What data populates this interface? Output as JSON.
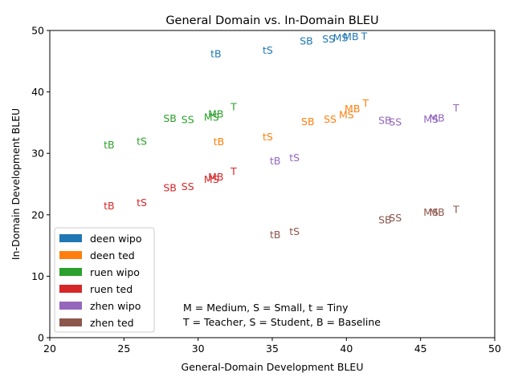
{
  "chart_data": {
    "type": "scatter",
    "title": "General Domain vs. In-Domain BLEU",
    "xlabel": "General-Domain Development BLEU",
    "ylabel": "In-Domain Development BLEU",
    "xlim": [
      20,
      50
    ],
    "ylim": [
      0,
      50
    ],
    "xticks": [
      20,
      25,
      30,
      35,
      40,
      45,
      50
    ],
    "yticks": [
      0,
      10,
      20,
      30,
      40,
      50
    ],
    "grid": false,
    "legend_position": "lower-left",
    "annotation_lines": [
      "M = Medium, S = Small, t = Tiny",
      "T = Teacher, S = Student, B = Baseline"
    ],
    "series": [
      {
        "name": "deen wipo",
        "color": "#1f77b4",
        "points": [
          {
            "label": "tB",
            "x": 31.2,
            "y": 46.2
          },
          {
            "label": "tS",
            "x": 34.7,
            "y": 46.8
          },
          {
            "label": "SB",
            "x": 37.3,
            "y": 48.3
          },
          {
            "label": "SS",
            "x": 38.8,
            "y": 48.6
          },
          {
            "label": "MS",
            "x": 39.6,
            "y": 48.8
          },
          {
            "label": "MB",
            "x": 40.3,
            "y": 49.0
          },
          {
            "label": "T",
            "x": 41.2,
            "y": 49.1
          }
        ]
      },
      {
        "name": "deen ted",
        "color": "#ff7f0e",
        "points": [
          {
            "label": "tB",
            "x": 31.4,
            "y": 31.9
          },
          {
            "label": "tS",
            "x": 34.7,
            "y": 32.7
          },
          {
            "label": "SB",
            "x": 37.4,
            "y": 35.2
          },
          {
            "label": "SS",
            "x": 38.9,
            "y": 35.6
          },
          {
            "label": "MS",
            "x": 40.0,
            "y": 36.3
          },
          {
            "label": "MB",
            "x": 40.4,
            "y": 37.3
          },
          {
            "label": "T",
            "x": 41.3,
            "y": 38.2
          }
        ]
      },
      {
        "name": "ruen wipo",
        "color": "#2ca02c",
        "points": [
          {
            "label": "tB",
            "x": 24.0,
            "y": 31.4
          },
          {
            "label": "tS",
            "x": 26.2,
            "y": 32.0
          },
          {
            "label": "SB",
            "x": 28.1,
            "y": 35.7
          },
          {
            "label": "SS",
            "x": 29.3,
            "y": 35.5
          },
          {
            "label": "MS",
            "x": 30.9,
            "y": 35.9
          },
          {
            "label": "MB",
            "x": 31.2,
            "y": 36.4
          },
          {
            "label": "T",
            "x": 32.4,
            "y": 37.6
          }
        ]
      },
      {
        "name": "ruen ted",
        "color": "#d62728",
        "points": [
          {
            "label": "tB",
            "x": 24.0,
            "y": 21.5
          },
          {
            "label": "tS",
            "x": 26.2,
            "y": 22.0
          },
          {
            "label": "SB",
            "x": 28.1,
            "y": 24.4
          },
          {
            "label": "SS",
            "x": 29.3,
            "y": 24.6
          },
          {
            "label": "MS",
            "x": 30.9,
            "y": 25.8
          },
          {
            "label": "MB",
            "x": 31.2,
            "y": 26.2
          },
          {
            "label": "T",
            "x": 32.4,
            "y": 27.1
          }
        ]
      },
      {
        "name": "zhen wipo",
        "color": "#9467bd",
        "points": [
          {
            "label": "tB",
            "x": 35.2,
            "y": 28.8
          },
          {
            "label": "tS",
            "x": 36.5,
            "y": 29.3
          },
          {
            "label": "SB",
            "x": 42.6,
            "y": 35.4
          },
          {
            "label": "SS",
            "x": 43.3,
            "y": 35.1
          },
          {
            "label": "MS",
            "x": 45.7,
            "y": 35.6
          },
          {
            "label": "MB",
            "x": 46.1,
            "y": 35.8
          },
          {
            "label": "T",
            "x": 47.4,
            "y": 37.4
          }
        ]
      },
      {
        "name": "zhen ted",
        "color": "#8c564b",
        "points": [
          {
            "label": "tB",
            "x": 35.2,
            "y": 16.8
          },
          {
            "label": "tS",
            "x": 36.5,
            "y": 17.3
          },
          {
            "label": "SB",
            "x": 42.6,
            "y": 19.2
          },
          {
            "label": "SS",
            "x": 43.3,
            "y": 19.5
          },
          {
            "label": "MS",
            "x": 45.7,
            "y": 20.4
          },
          {
            "label": "MB",
            "x": 46.1,
            "y": 20.4
          },
          {
            "label": "T",
            "x": 47.4,
            "y": 20.9
          }
        ]
      }
    ]
  }
}
